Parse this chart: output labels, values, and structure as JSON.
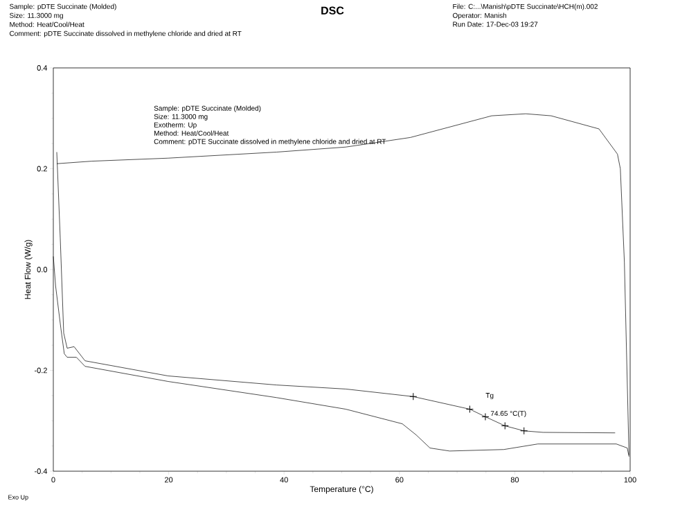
{
  "chart_data": {
    "type": "line",
    "title": "DSC",
    "xlabel": "Temperature (°C)",
    "ylabel": "Heat Flow (W/g)",
    "xlim": [
      0,
      100
    ],
    "ylim": [
      -0.4,
      0.4
    ],
    "xticks": [
      0,
      20,
      40,
      60,
      80,
      100
    ],
    "yticks": [
      -0.4,
      -0.2,
      {
        "value": 0,
        "label": "0.0"
      },
      0.2,
      0.4
    ],
    "grid": false,
    "marker": "none",
    "line_style": "solid",
    "series": [
      {
        "color": "#000000",
        "x": [
          0.6,
          6.7,
          19.9,
          38.7,
          50.7,
          61.9,
          76.0,
          81.9,
          86.3,
          94.6,
          97.8,
          98.3,
          99.0,
          99.8
        ],
        "values": [
          0.21,
          0.215,
          0.221,
          0.233,
          0.243,
          0.262,
          0.305,
          0.309,
          0.305,
          0.279,
          0.229,
          0.2,
          0.015,
          -0.368
        ]
      },
      {
        "color": "#000000",
        "x": [
          0,
          0.4,
          1.3,
          1.9,
          2.4,
          4.0,
          5.5,
          19.9,
          38.7,
          50.7,
          60.5,
          62.9,
          65.3,
          68.7,
          78.1,
          84.0,
          97.6,
          99.5,
          99.8
        ],
        "values": [
          0.026,
          -0.033,
          -0.116,
          -0.167,
          -0.174,
          -0.174,
          -0.192,
          -0.222,
          -0.254,
          -0.277,
          -0.306,
          -0.328,
          -0.354,
          -0.36,
          -0.357,
          -0.346,
          -0.346,
          -0.354,
          -0.371
        ]
      },
      {
        "color": "#000000",
        "x": [
          0.6,
          1.2,
          1.8,
          2.4,
          3.6,
          5.5,
          19.9,
          38.7,
          50.7,
          62.4,
          72.2,
          74.9,
          78.3,
          81.6,
          84.9,
          97.4
        ],
        "values": [
          0.233,
          0.063,
          -0.126,
          -0.156,
          -0.153,
          -0.181,
          -0.211,
          -0.229,
          -0.237,
          -0.252,
          -0.277,
          -0.292,
          -0.31,
          -0.32,
          -0.323,
          -0.324
        ]
      },
      {
        "type": "scatter",
        "marker": "cross",
        "color": "#000000",
        "x": [
          62.4,
          72.2,
          74.9,
          78.3,
          81.6
        ],
        "values": [
          -0.252,
          -0.277,
          -0.292,
          -0.31,
          -0.32
        ]
      }
    ],
    "annotations": [
      "Sample: pDTE Succinate (Molded)",
      "Size:  11.3000 mg",
      "Method: Heat/Cool/Heat",
      "Comment: pDTE Succinate dissolved in methylene chloride and dried at RT",
      "File: C:...\\Manish\\pDTE Succinate\\HCH(m).002",
      "Operator: Manish",
      "Run Date: 17-Dec-03 19:27",
      "Sample: pDTE Succinate (Molded)",
      "Size:  11.3000  mg",
      "Exotherm:  Up",
      "Method:  Heat/Cool/Heat",
      "Comment:  pDTE Succinate dissolved in methylene chloride and dried at RT",
      "Exo Up",
      {
        "text": "Tg",
        "x": 74.65,
        "y": -0.292
      },
      {
        "text": "74.65 °C(T)",
        "x": 74.65,
        "y": -0.292
      }
    ]
  }
}
